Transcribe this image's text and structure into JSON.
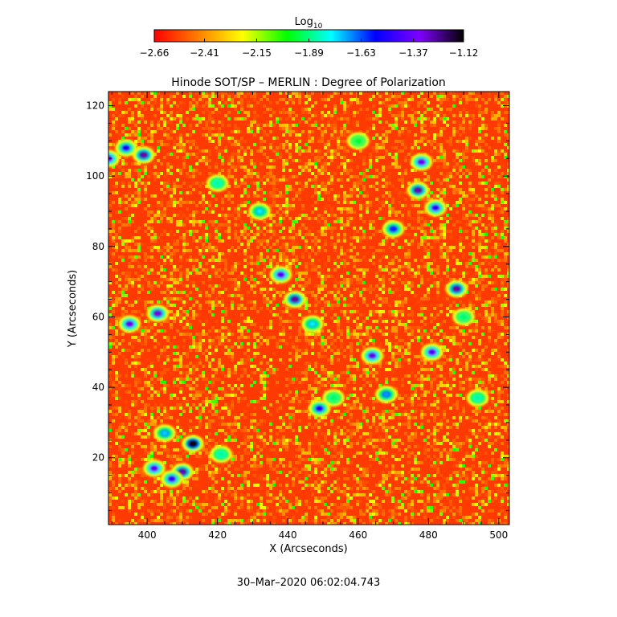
{
  "chart_data": {
    "type": "heatmap",
    "title": "Hinode SOT/SP – MERLIN : Degree of Polarization",
    "xlabel": "X (Arcseconds)",
    "ylabel": "Y (Arcseconds)",
    "xlim": [
      389,
      503
    ],
    "ylim": [
      1,
      124
    ],
    "xticks": [
      400,
      420,
      440,
      460,
      480,
      500
    ],
    "yticks": [
      20,
      40,
      60,
      80,
      100,
      120
    ],
    "colorbar": {
      "label_base": "Log",
      "label_sub": "10",
      "ticks": [
        -2.66,
        -2.41,
        -2.15,
        -1.89,
        -1.63,
        -1.37,
        -1.12
      ],
      "tick_labels": [
        "−2.66",
        "−2.41",
        "−2.15",
        "−1.89",
        "−1.63",
        "−1.37",
        "−1.12"
      ],
      "colormap": [
        "#ff0000",
        "#ff7f00",
        "#ffff00",
        "#00ff00",
        "#00ffff",
        "#0000ff",
        "#8000ff",
        "#000000"
      ]
    },
    "background_level": -2.66,
    "high_polarization_features": [
      {
        "x": 413,
        "y": 24,
        "level": -1.12
      },
      {
        "x": 410,
        "y": 16,
        "level": -1.3
      },
      {
        "x": 402,
        "y": 17,
        "level": -1.45
      },
      {
        "x": 407,
        "y": 14,
        "level": -1.5
      },
      {
        "x": 405,
        "y": 27,
        "level": -1.75
      },
      {
        "x": 421,
        "y": 21,
        "level": -1.9
      },
      {
        "x": 395,
        "y": 58,
        "level": -1.4
      },
      {
        "x": 403,
        "y": 61,
        "level": -1.35
      },
      {
        "x": 399,
        "y": 106,
        "level": -1.3
      },
      {
        "x": 394,
        "y": 108,
        "level": -1.55
      },
      {
        "x": 389,
        "y": 105,
        "level": -1.4
      },
      {
        "x": 442,
        "y": 65,
        "level": -1.3
      },
      {
        "x": 438,
        "y": 72,
        "level": -1.45
      },
      {
        "x": 447,
        "y": 58,
        "level": -1.8
      },
      {
        "x": 453,
        "y": 37,
        "level": -1.95
      },
      {
        "x": 449,
        "y": 34,
        "level": -1.55
      },
      {
        "x": 464,
        "y": 49,
        "level": -1.4
      },
      {
        "x": 468,
        "y": 38,
        "level": -1.7
      },
      {
        "x": 478,
        "y": 104,
        "level": -1.4
      },
      {
        "x": 477,
        "y": 96,
        "level": -1.3
      },
      {
        "x": 482,
        "y": 91,
        "level": -1.5
      },
      {
        "x": 470,
        "y": 85,
        "level": -1.6
      },
      {
        "x": 488,
        "y": 68,
        "level": -1.3
      },
      {
        "x": 481,
        "y": 50,
        "level": -1.45
      },
      {
        "x": 490,
        "y": 60,
        "level": -1.95
      },
      {
        "x": 432,
        "y": 90,
        "level": -1.8
      },
      {
        "x": 420,
        "y": 98,
        "level": -1.9
      },
      {
        "x": 460,
        "y": 110,
        "level": -2.0
      },
      {
        "x": 494,
        "y": 37,
        "level": -1.9
      }
    ],
    "timestamp": "30–Mar–2020 06:02:04.743"
  }
}
